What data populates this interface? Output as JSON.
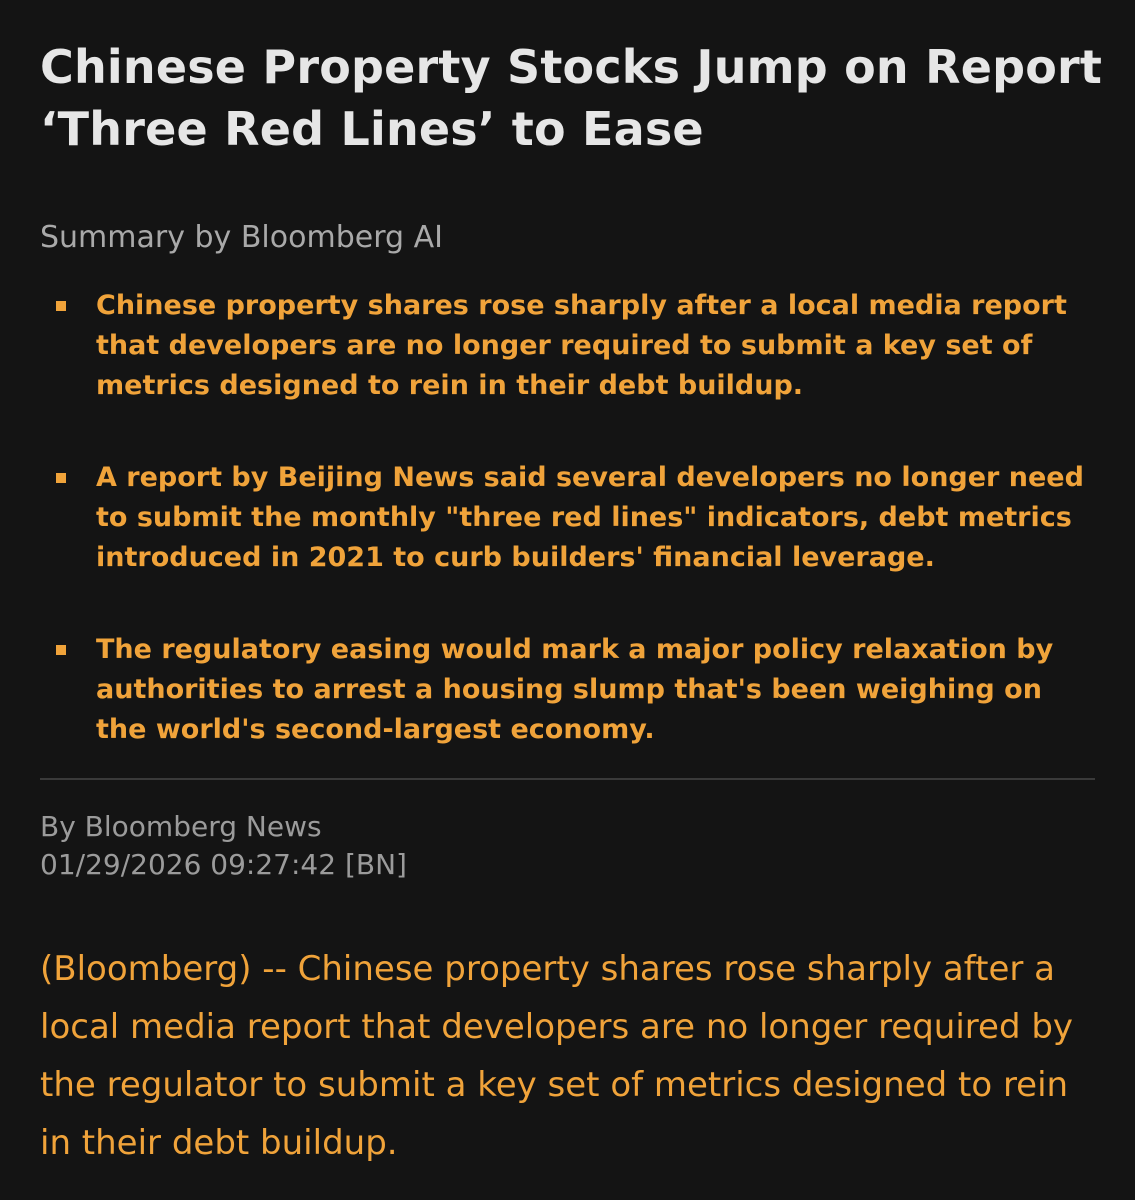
{
  "article": {
    "headline": "Chinese Property Stocks Jump on Report ‘Three Red Lines’ to Ease",
    "summary_label": "Summary by Bloomberg AI",
    "summary_points": [
      "Chinese property shares rose sharply after a local media report that developers are no longer required to submit a key set of metrics designed to rein in their debt buildup.",
      "A report by Beijing News said several developers no longer need to submit the monthly \"three red lines\" indicators, debt metrics introduced in 2021 to curb builders' financial leverage.",
      "The regulatory easing would mark a major policy relaxation by authorities to arrest a housing slump that's been weighing on the world's second-largest economy."
    ],
    "byline": "By Bloomberg News",
    "dateline": "01/29/2026 09:27:42 [BN]",
    "body": "(Bloomberg) -- Chinese property shares rose sharply after a local media report that developers are no longer required by the regulator to submit a key set of metrics designed to rein in their debt buildup."
  },
  "colors": {
    "background": "#141414",
    "headline": "#e6e6e6",
    "accent": "#f0a33a",
    "muted": "#9b9b9b"
  }
}
